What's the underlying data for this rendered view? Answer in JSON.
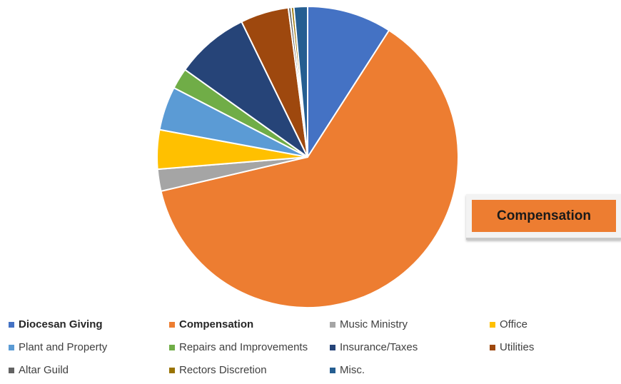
{
  "chart_data": {
    "type": "pie",
    "categories": [
      "Diocesan Giving",
      "Compensation",
      "Music Ministry",
      "Office",
      "Plant and Property",
      "Repairs and Improvements",
      "Insurance/Taxes",
      "Utilities",
      "Altar Guild",
      "Rectors Discretion",
      "Misc."
    ],
    "values": [
      9.3,
      63.7,
      2.4,
      4.3,
      4.8,
      2.3,
      8.1,
      5.3,
      0.3,
      0.3,
      1.5
    ],
    "colors": [
      "#4472C4",
      "#ED7D31",
      "#A5A5A5",
      "#FFC000",
      "#5B9BD5",
      "#70AD47",
      "#264478",
      "#9E480E",
      "#636363",
      "#997300",
      "#255E91"
    ],
    "highlighted": [
      "Diocesan Giving",
      "Compensation"
    ],
    "legend_position": "bottom",
    "callout": {
      "label": "Compensation",
      "color": "#ED7D31"
    }
  }
}
